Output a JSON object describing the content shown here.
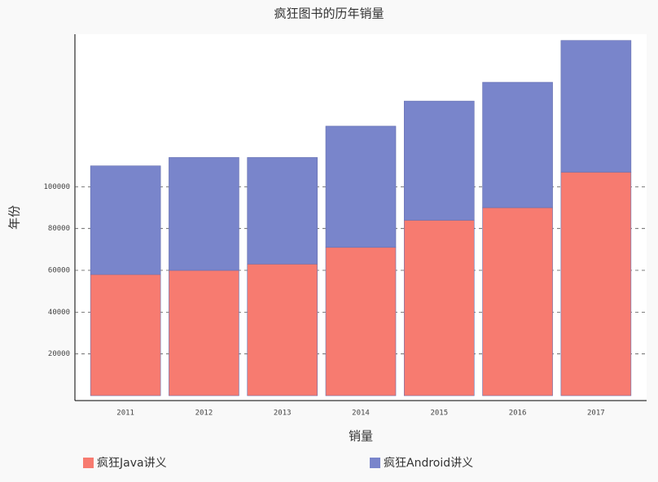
{
  "chart_data": {
    "type": "bar",
    "stacked": true,
    "title": "疯狂图书的历年销量",
    "y_label": "年份",
    "x_label": "销量",
    "categories": [
      "2011",
      "2012",
      "2013",
      "2014",
      "2015",
      "2016",
      "2017"
    ],
    "series": [
      {
        "name": "疯狂Java讲义",
        "color": "#f77b70",
        "values": [
          58000,
          60000,
          63000,
          71000,
          84000,
          90000,
          107000
        ]
      },
      {
        "name": "疯狂Android讲义",
        "color": "#7985cb",
        "values": [
          52000,
          54000,
          51000,
          58000,
          57000,
          60000,
          63000
        ]
      }
    ],
    "ylim": [
      0,
      173000
    ],
    "yticks": [
      20000,
      40000,
      60000,
      80000,
      100000
    ],
    "grid": true
  }
}
